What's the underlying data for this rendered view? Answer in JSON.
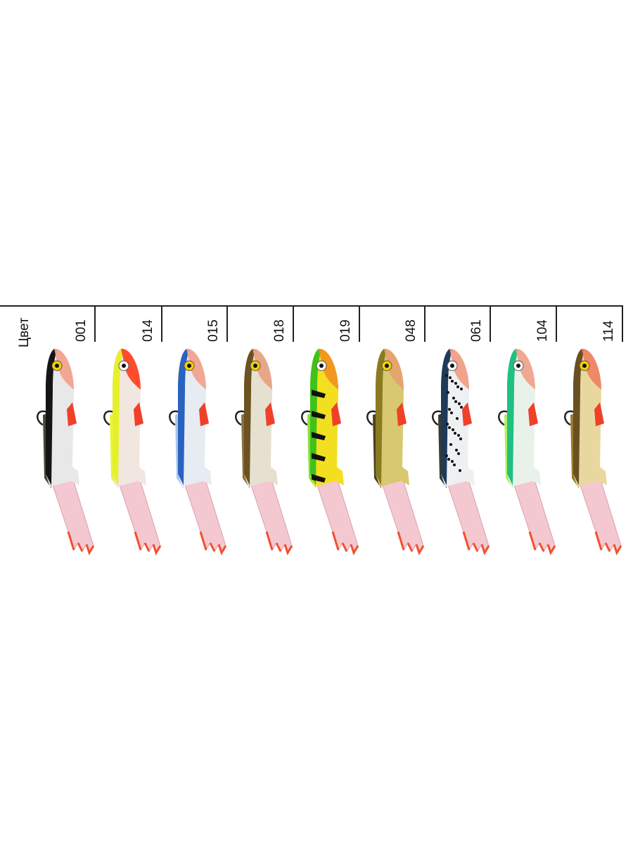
{
  "header_label": "Цвет",
  "colors": [
    {
      "code": "001",
      "back": "#151515",
      "body": "#e8e8e8",
      "head": "#f2a08a",
      "keel": "#4a4536",
      "eye": "#f5d000",
      "stripes": false,
      "spots": false
    },
    {
      "code": "014",
      "back": "#e6f02a",
      "body": "#f2e6e0",
      "head": "#ff3b1a",
      "keel": "#e8f53a",
      "eye": "#ffffff",
      "stripes": false,
      "spots": false
    },
    {
      "code": "015",
      "back": "#2a62c0",
      "body": "#e6ecf2",
      "head": "#f2a08a",
      "keel": "#a9c7ec",
      "eye": "#f5d000",
      "stripes": false,
      "spots": false
    },
    {
      "code": "018",
      "back": "#6b5220",
      "body": "#e6e0d0",
      "head": "#e8a080",
      "keel": "#8a7040",
      "eye": "#f5d000",
      "stripes": false,
      "spots": false
    },
    {
      "code": "019",
      "back": "#3fc21a",
      "body": "#f2e020",
      "head": "#f29020",
      "keel": "#8ae03a",
      "eye": "#ffffff",
      "stripes": true,
      "spots": false
    },
    {
      "code": "048",
      "back": "#8a7a20",
      "body": "#d8c870",
      "head": "#e8a070",
      "keel": "#4a4020",
      "eye": "#f5d000",
      "stripes": false,
      "spots": false
    },
    {
      "code": "061",
      "back": "#1e3a5a",
      "body": "#eef0f2",
      "head": "#f29a80",
      "keel": "#3a3a30",
      "eye": "#ffffff",
      "stripes": false,
      "spots": true
    },
    {
      "code": "104",
      "back": "#20c080",
      "body": "#e8f2ea",
      "head": "#f2a08a",
      "keel": "#b0f060",
      "eye": "#ffffff",
      "stripes": false,
      "spots": false
    },
    {
      "code": "114",
      "back": "#6a5020",
      "body": "#e8d8a0",
      "head": "#f08060",
      "keel": "#9a7a30",
      "eye": "#f5d000",
      "stripes": false,
      "spots": false
    }
  ],
  "accent": {
    "fin": "#f0402a",
    "tail": "#f4c8d0",
    "tail_tip": "#f05030",
    "hook": "#222222"
  }
}
